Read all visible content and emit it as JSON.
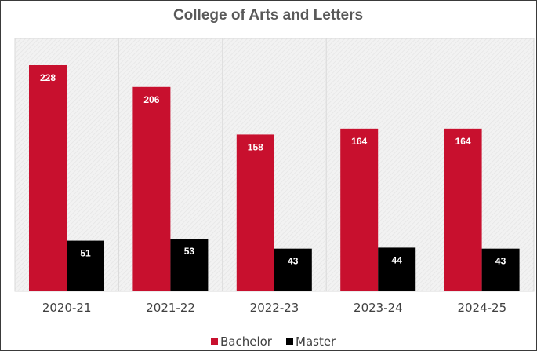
{
  "chart_data": {
    "type": "bar",
    "title": "College of Arts and Letters",
    "xlabel": "",
    "ylabel": "",
    "categories": [
      "2020-21",
      "2021-22",
      "2022-23",
      "2023-24",
      "2024-25"
    ],
    "series": [
      {
        "name": "Bachelor",
        "values": [
          228,
          206,
          158,
          164,
          164
        ],
        "color": "#c8102e"
      },
      {
        "name": "Master",
        "values": [
          51,
          53,
          43,
          44,
          43
        ],
        "color": "#000000"
      }
    ],
    "ylim": [
      0,
      240
    ],
    "grid": false,
    "y_axis_visible": false,
    "data_labels": true,
    "legend_position": "bottom-center",
    "plot_background": "#efefef",
    "plot_border_color": "#d9d9d9",
    "label_color": "#ffffff"
  }
}
